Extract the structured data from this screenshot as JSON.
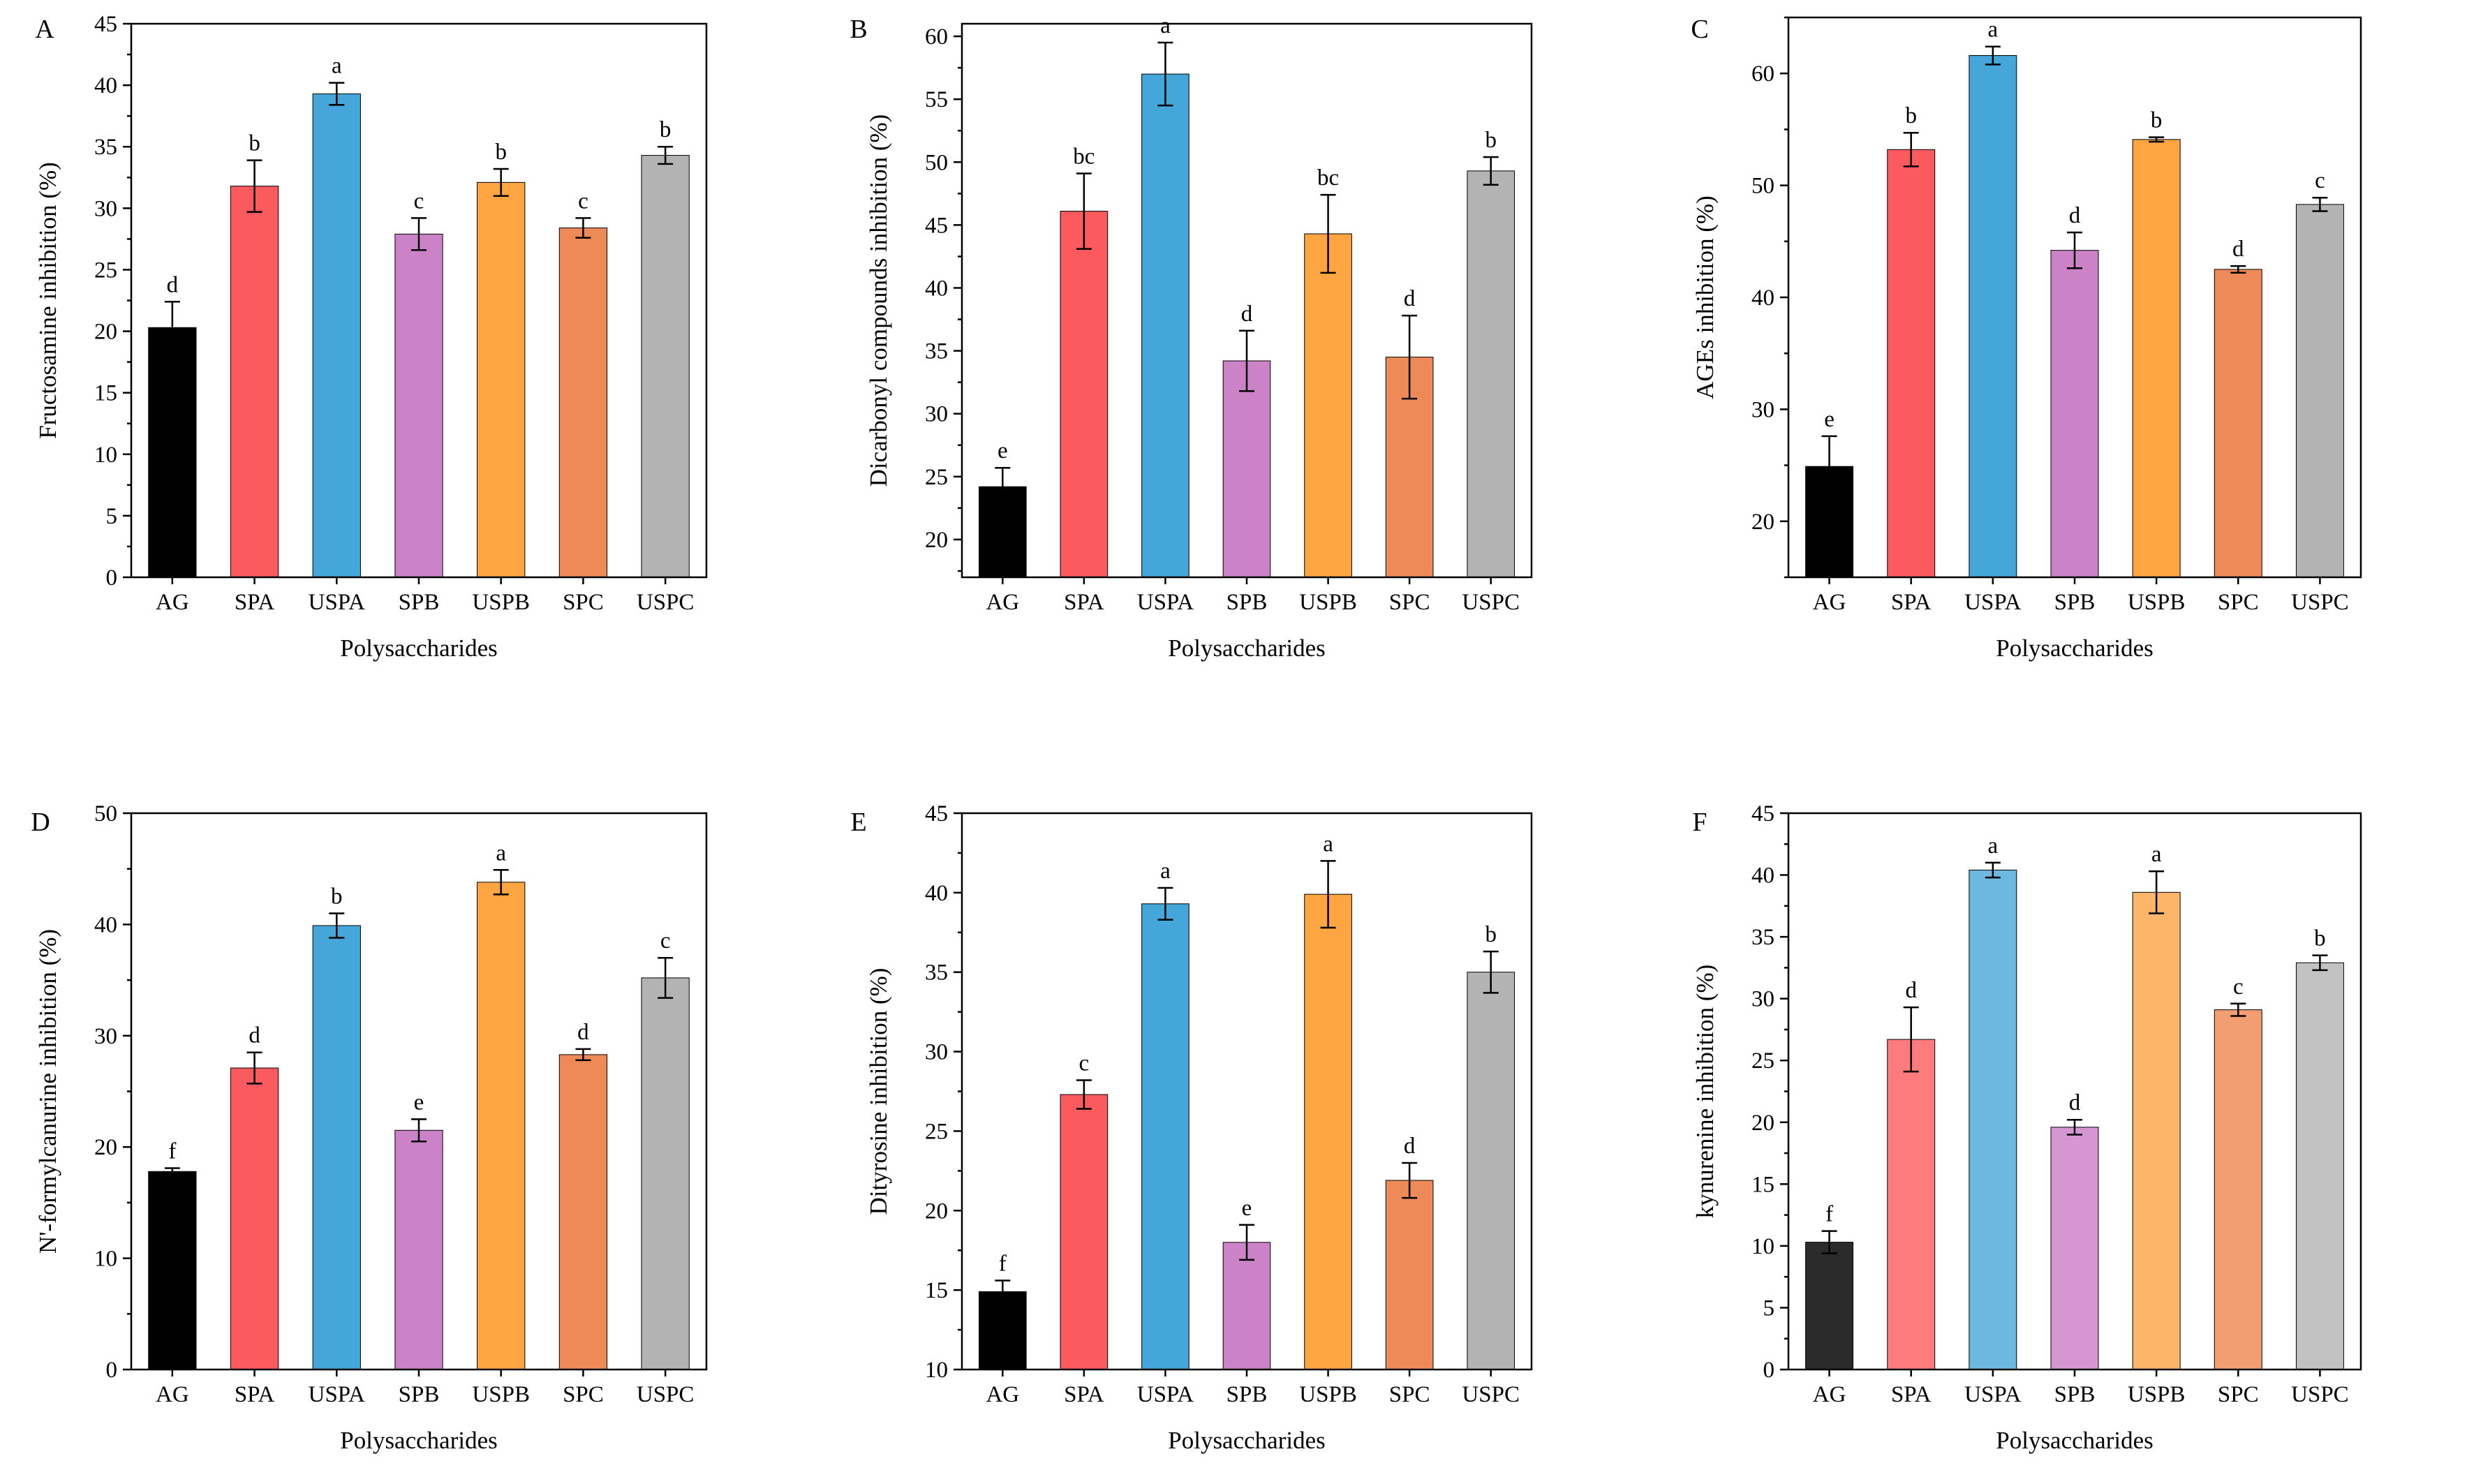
{
  "chart_data": [
    {
      "type": "bar",
      "panel": "A",
      "categories": [
        "AG",
        "SPA",
        "USPA",
        "SPB",
        "USPB",
        "SPC",
        "USPC"
      ],
      "values": [
        20.3,
        31.8,
        39.3,
        27.9,
        32.1,
        28.4,
        34.3
      ],
      "errors": [
        2.1,
        2.1,
        0.9,
        1.3,
        1.1,
        0.8,
        0.7
      ],
      "letters": [
        "d",
        "b",
        "a",
        "c",
        "b",
        "c",
        "b"
      ],
      "colors": [
        "#000000",
        "#fb5a5e",
        "#44a6d9",
        "#cc82c6",
        "#fca541",
        "#ee8a58",
        "#b3b3b3"
      ],
      "xlabel": "Polysaccharides",
      "ylabel": "Fructosamine inhibition (%)",
      "ylim": [
        0,
        45
      ],
      "yticks": [
        0,
        5,
        10,
        15,
        20,
        25,
        30,
        35,
        40,
        45
      ]
    },
    {
      "type": "bar",
      "panel": "B",
      "categories": [
        "AG",
        "SPA",
        "USPA",
        "SPB",
        "USPB",
        "SPC",
        "USPC"
      ],
      "values": [
        24.2,
        46.1,
        57.0,
        34.2,
        44.3,
        34.5,
        49.3
      ],
      "errors": [
        1.5,
        3.0,
        2.5,
        2.4,
        3.1,
        3.3,
        1.1
      ],
      "letters": [
        "e",
        "bc",
        "a",
        "d",
        "bc",
        "d",
        "b"
      ],
      "colors": [
        "#000000",
        "#fb5a5e",
        "#44a6d9",
        "#cc82c6",
        "#fca541",
        "#ee8a58",
        "#b3b3b3"
      ],
      "xlabel": "Polysaccharides",
      "ylabel": "Dicarbonyl compounds inhibition (%)",
      "ylim": [
        17,
        61
      ],
      "yticks": [
        20,
        25,
        30,
        35,
        40,
        45,
        50,
        55,
        60
      ]
    },
    {
      "type": "bar",
      "panel": "C",
      "categories": [
        "AG",
        "SPA",
        "USPA",
        "SPB",
        "USPB",
        "SPC",
        "USPC"
      ],
      "values": [
        24.9,
        53.2,
        61.6,
        44.2,
        54.1,
        42.5,
        48.3
      ],
      "errors": [
        2.7,
        1.5,
        0.8,
        1.6,
        0.2,
        0.3,
        0.6
      ],
      "letters": [
        "e",
        "b",
        "a",
        "d",
        "b",
        "d",
        "c"
      ],
      "colors": [
        "#000000",
        "#fb5a5e",
        "#44a6d9",
        "#cc82c6",
        "#fca541",
        "#ee8a58",
        "#b3b3b3"
      ],
      "xlabel": "Polysaccharides",
      "ylabel": "AGEs inhibition (%)",
      "ylim": [
        15,
        65
      ],
      "yticks": [
        20,
        30,
        40,
        50,
        60
      ]
    },
    {
      "type": "bar",
      "panel": "D",
      "categories": [
        "AG",
        "SPA",
        "USPA",
        "SPB",
        "USPB",
        "SPC",
        "USPC"
      ],
      "values": [
        17.8,
        27.1,
        39.9,
        21.5,
        43.8,
        28.3,
        35.2
      ],
      "errors": [
        0.3,
        1.4,
        1.1,
        1.0,
        1.1,
        0.5,
        1.8
      ],
      "letters": [
        "f",
        "d",
        "b",
        "e",
        "a",
        "d",
        "c"
      ],
      "colors": [
        "#000000",
        "#fb5a5e",
        "#44a6d9",
        "#cc82c6",
        "#fca541",
        "#ee8a58",
        "#b3b3b3"
      ],
      "xlabel": "Polysaccharides",
      "ylabel": "N'-formylcanurine inhibition (%)",
      "ylim": [
        0,
        50
      ],
      "yticks": [
        0,
        10,
        20,
        30,
        40,
        50
      ]
    },
    {
      "type": "bar",
      "panel": "E",
      "categories": [
        "AG",
        "SPA",
        "USPA",
        "SPB",
        "USPB",
        "SPC",
        "USPC"
      ],
      "values": [
        14.9,
        27.3,
        39.3,
        18.0,
        39.9,
        21.9,
        35.0
      ],
      "errors": [
        0.7,
        0.9,
        1.0,
        1.1,
        2.1,
        1.1,
        1.3
      ],
      "letters": [
        "f",
        "c",
        "a",
        "e",
        "a",
        "d",
        "b"
      ],
      "colors": [
        "#000000",
        "#fb5a5e",
        "#44a6d9",
        "#cc82c6",
        "#fca541",
        "#ee8a58",
        "#b3b3b3"
      ],
      "xlabel": "Polysaccharides",
      "ylabel": "Dityrosine inhibition (%)",
      "ylim": [
        10,
        45
      ],
      "yticks": [
        10,
        15,
        20,
        25,
        30,
        35,
        40,
        45
      ]
    },
    {
      "type": "bar",
      "panel": "F",
      "categories": [
        "AG",
        "SPA",
        "USPA",
        "SPB",
        "USPB",
        "SPC",
        "USPC"
      ],
      "values": [
        10.3,
        26.7,
        40.4,
        19.6,
        38.6,
        29.1,
        32.9
      ],
      "errors": [
        0.9,
        2.6,
        0.6,
        0.6,
        1.7,
        0.5,
        0.6
      ],
      "letters": [
        "f",
        "d",
        "a",
        "d",
        "a",
        "c",
        "b"
      ],
      "colors": [
        "#2b2b2b",
        "#fd7b7d",
        "#6db8e0",
        "#d696d1",
        "#fdb56a",
        "#f29d72",
        "#c2c2c2"
      ],
      "xlabel": "Polysaccharides",
      "ylabel": "kynurenine inhibition (%)",
      "ylim": [
        0,
        45
      ],
      "yticks": [
        0,
        5,
        10,
        15,
        20,
        25,
        30,
        35,
        40,
        45
      ]
    }
  ]
}
